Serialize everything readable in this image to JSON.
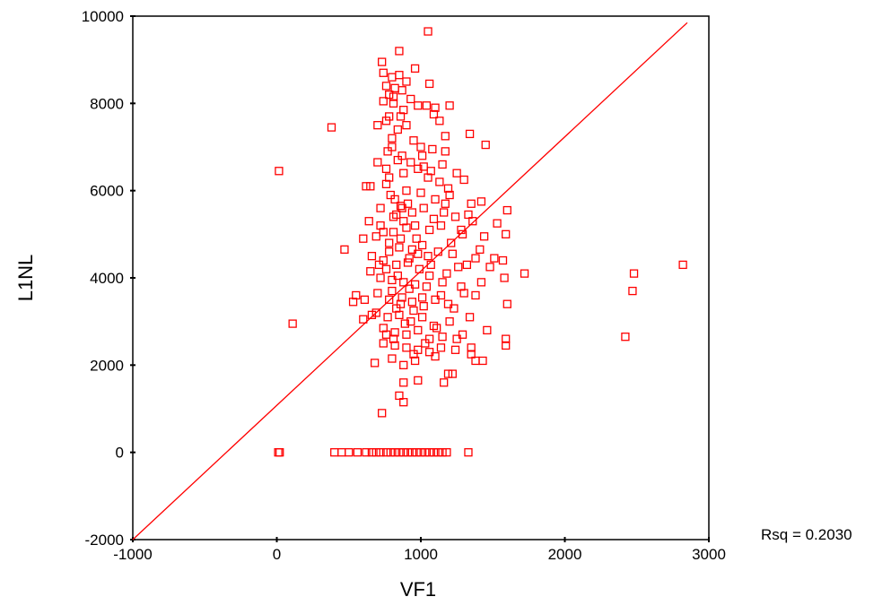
{
  "chart_data": {
    "type": "scatter",
    "title": "",
    "xlabel": "VF1",
    "ylabel": "L1NL",
    "xlim": [
      -1000,
      3000
    ],
    "ylim": [
      -2000,
      10000
    ],
    "xticks": [
      "-1000",
      "0",
      "1000",
      "2000",
      "3000"
    ],
    "yticks": [
      "-2000",
      "0",
      "2000",
      "4000",
      "6000",
      "8000",
      "10000"
    ],
    "grid": false,
    "marker": "open-square",
    "color": "#ff0000",
    "fit_line": {
      "x": [
        -1000,
        2850
      ],
      "y": [
        -2000,
        9850
      ]
    },
    "rsq_label": "Rsq = 0.2030",
    "points": [
      [
        1050,
        9650
      ],
      [
        850,
        9200
      ],
      [
        730,
        8950
      ],
      [
        960,
        8800
      ],
      [
        1060,
        8450
      ],
      [
        740,
        8700
      ],
      [
        800,
        8600
      ],
      [
        850,
        8650
      ],
      [
        900,
        8500
      ],
      [
        760,
        8400
      ],
      [
        820,
        8350
      ],
      [
        870,
        8300
      ],
      [
        780,
        8200
      ],
      [
        930,
        8100
      ],
      [
        740,
        8050
      ],
      [
        810,
        8000
      ],
      [
        980,
        7950
      ],
      [
        1040,
        7950
      ],
      [
        1100,
        7900
      ],
      [
        1200,
        7950
      ],
      [
        1090,
        7750
      ],
      [
        1130,
        7600
      ],
      [
        860,
        7700
      ],
      [
        760,
        7600
      ],
      [
        900,
        7500
      ],
      [
        380,
        7450
      ],
      [
        1340,
        7300
      ],
      [
        1170,
        7250
      ],
      [
        1450,
        7050
      ],
      [
        700,
        7500
      ],
      [
        800,
        7200
      ],
      [
        1000,
        7000
      ],
      [
        1080,
        6950
      ],
      [
        870,
        6800
      ],
      [
        930,
        6650
      ],
      [
        770,
        6900
      ],
      [
        840,
        6700
      ],
      [
        1150,
        6600
      ],
      [
        1250,
        6400
      ],
      [
        700,
        6650
      ],
      [
        15,
        6450
      ],
      [
        980,
        6500
      ],
      [
        880,
        6400
      ],
      [
        1050,
        6300
      ],
      [
        1300,
        6250
      ],
      [
        620,
        6100
      ],
      [
        650,
        6100
      ],
      [
        760,
        6150
      ],
      [
        900,
        6000
      ],
      [
        1000,
        5950
      ],
      [
        1100,
        5800
      ],
      [
        1200,
        5900
      ],
      [
        1350,
        5700
      ],
      [
        1420,
        5750
      ],
      [
        1600,
        5550
      ],
      [
        790,
        5900
      ],
      [
        860,
        5650
      ],
      [
        940,
        5500
      ],
      [
        1020,
        5600
      ],
      [
        1160,
        5500
      ],
      [
        1240,
        5400
      ],
      [
        1330,
        5450
      ],
      [
        1530,
        5250
      ],
      [
        640,
        5300
      ],
      [
        720,
        5200
      ],
      [
        810,
        5400
      ],
      [
        880,
        5300
      ],
      [
        960,
        5200
      ],
      [
        1060,
        5100
      ],
      [
        1140,
        5200
      ],
      [
        1290,
        5000
      ],
      [
        1440,
        4950
      ],
      [
        1590,
        5000
      ],
      [
        600,
        4900
      ],
      [
        690,
        4950
      ],
      [
        780,
        4800
      ],
      [
        850,
        4700
      ],
      [
        940,
        4650
      ],
      [
        1010,
        4750
      ],
      [
        1120,
        4600
      ],
      [
        1220,
        4550
      ],
      [
        1380,
        4450
      ],
      [
        1510,
        4450
      ],
      [
        470,
        4650
      ],
      [
        660,
        4500
      ],
      [
        740,
        4400
      ],
      [
        830,
        4300
      ],
      [
        910,
        4350
      ],
      [
        990,
        4200
      ],
      [
        1070,
        4300
      ],
      [
        1180,
        4100
      ],
      [
        1320,
        4300
      ],
      [
        1570,
        4400
      ],
      [
        1720,
        4100
      ],
      [
        650,
        4150
      ],
      [
        720,
        4000
      ],
      [
        800,
        3950
      ],
      [
        880,
        3900
      ],
      [
        960,
        3850
      ],
      [
        1040,
        3800
      ],
      [
        1150,
        3900
      ],
      [
        1280,
        3800
      ],
      [
        1420,
        3900
      ],
      [
        1580,
        4000
      ],
      [
        2480,
        4100
      ],
      [
        2820,
        4300
      ],
      [
        2470,
        3700
      ],
      [
        550,
        3600
      ],
      [
        610,
        3500
      ],
      [
        700,
        3650
      ],
      [
        780,
        3500
      ],
      [
        860,
        3400
      ],
      [
        940,
        3450
      ],
      [
        1020,
        3350
      ],
      [
        1100,
        3500
      ],
      [
        1230,
        3300
      ],
      [
        1380,
        3600
      ],
      [
        1600,
        3400
      ],
      [
        530,
        3450
      ],
      [
        690,
        3200
      ],
      [
        770,
        3100
      ],
      [
        850,
        3150
      ],
      [
        930,
        3000
      ],
      [
        1010,
        3100
      ],
      [
        1090,
        2900
      ],
      [
        1200,
        3000
      ],
      [
        1340,
        3100
      ],
      [
        660,
        3150
      ],
      [
        110,
        2950
      ],
      [
        600,
        3050
      ],
      [
        740,
        2850
      ],
      [
        820,
        2750
      ],
      [
        900,
        2700
      ],
      [
        980,
        2800
      ],
      [
        1060,
        2600
      ],
      [
        1150,
        2650
      ],
      [
        1290,
        2700
      ],
      [
        1460,
        2800
      ],
      [
        1590,
        2600
      ],
      [
        2420,
        2650
      ],
      [
        740,
        2500
      ],
      [
        820,
        2450
      ],
      [
        900,
        2400
      ],
      [
        980,
        2350
      ],
      [
        1060,
        2300
      ],
      [
        1140,
        2400
      ],
      [
        1240,
        2350
      ],
      [
        1350,
        2250
      ],
      [
        1590,
        2450
      ],
      [
        680,
        2050
      ],
      [
        800,
        2150
      ],
      [
        880,
        2000
      ],
      [
        960,
        2100
      ],
      [
        1100,
        2200
      ],
      [
        1190,
        1800
      ],
      [
        1220,
        1800
      ],
      [
        1380,
        2100
      ],
      [
        1430,
        2100
      ],
      [
        880,
        1600
      ],
      [
        980,
        1650
      ],
      [
        1160,
        1600
      ],
      [
        850,
        1300
      ],
      [
        880,
        1150
      ],
      [
        730,
        900
      ],
      [
        10,
        0
      ],
      [
        20,
        0
      ],
      [
        400,
        0
      ],
      [
        450,
        0
      ],
      [
        500,
        0
      ],
      [
        560,
        0
      ],
      [
        620,
        0
      ],
      [
        660,
        0
      ],
      [
        690,
        0
      ],
      [
        720,
        0
      ],
      [
        760,
        0
      ],
      [
        790,
        0
      ],
      [
        820,
        0
      ],
      [
        850,
        0
      ],
      [
        880,
        0
      ],
      [
        910,
        0
      ],
      [
        940,
        0
      ],
      [
        970,
        0
      ],
      [
        1000,
        0
      ],
      [
        1030,
        0
      ],
      [
        1060,
        0
      ],
      [
        1090,
        0
      ],
      [
        1120,
        0
      ],
      [
        1150,
        0
      ],
      [
        1180,
        0
      ],
      [
        1330,
        0
      ],
      [
        830,
        5450
      ],
      [
        870,
        5600
      ],
      [
        910,
        5700
      ],
      [
        810,
        5050
      ],
      [
        860,
        4900
      ],
      [
        780,
        4600
      ],
      [
        920,
        4450
      ],
      [
        760,
        4200
      ],
      [
        840,
        4050
      ],
      [
        920,
        3750
      ],
      [
        800,
        3700
      ],
      [
        870,
        3550
      ],
      [
        950,
        3250
      ],
      [
        830,
        3300
      ],
      [
        890,
        2950
      ],
      [
        810,
        2600
      ],
      [
        760,
        2700
      ],
      [
        970,
        4900
      ],
      [
        1050,
        4500
      ],
      [
        1090,
        5350
      ],
      [
        1130,
        6200
      ],
      [
        1170,
        5700
      ],
      [
        1210,
        4800
      ],
      [
        1260,
        4250
      ],
      [
        1300,
        3650
      ],
      [
        1190,
        3400
      ],
      [
        1110,
        2850
      ],
      [
        1030,
        2500
      ],
      [
        950,
        2250
      ],
      [
        1010,
        6800
      ],
      [
        1070,
        6450
      ],
      [
        1190,
        6050
      ],
      [
        780,
        6300
      ],
      [
        820,
        5800
      ],
      [
        900,
        5150
      ],
      [
        980,
        4550
      ],
      [
        1060,
        4050
      ],
      [
        1140,
        3600
      ],
      [
        1010,
        3550
      ],
      [
        710,
        4300
      ],
      [
        740,
        5050
      ],
      [
        720,
        5600
      ],
      [
        760,
        6500
      ],
      [
        800,
        7000
      ],
      [
        840,
        7400
      ],
      [
        780,
        7700
      ],
      [
        810,
        8150
      ],
      [
        880,
        7850
      ],
      [
        950,
        7150
      ],
      [
        1020,
        6550
      ],
      [
        1170,
        6900
      ],
      [
        1280,
        5100
      ],
      [
        1360,
        5300
      ],
      [
        1410,
        4650
      ],
      [
        1480,
        4250
      ],
      [
        1250,
        2600
      ],
      [
        1350,
        2400
      ]
    ]
  }
}
